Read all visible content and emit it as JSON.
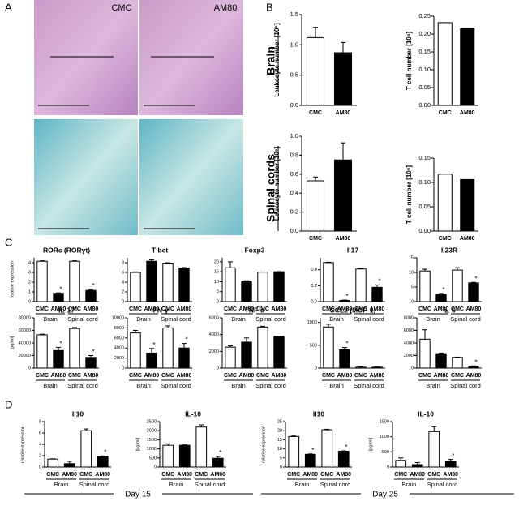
{
  "panel_labels": [
    "A",
    "B",
    "C",
    "D"
  ],
  "image_labels": [
    "CMC",
    "AM80"
  ],
  "row_labels": [
    "Brain",
    "Spinal cords"
  ],
  "day_labels": [
    "Day 15",
    "Day 25"
  ],
  "chart_data": [
    {
      "type": "bar",
      "ylabel": "Leukocyte number [10⁶]",
      "categories": [
        "CMC",
        "AM80"
      ],
      "values": [
        1.12,
        0.87
      ],
      "errors": [
        0.17,
        0.17
      ],
      "colors": [
        "#ffffff",
        "#000000"
      ],
      "ylim": [
        0,
        1.5
      ],
      "yticks": [
        {
          "value": 0,
          "label": "0.0"
        },
        0.5,
        {
          "value": 1,
          "label": "1.0"
        },
        1.5
      ]
    },
    {
      "type": "bar",
      "ylabel": "T cell number [10⁶]",
      "categories": [
        "CMC",
        "AM80"
      ],
      "values": [
        0.232,
        0.215
      ],
      "colors": [
        "#ffffff",
        "#000000"
      ],
      "ylim": [
        0,
        0.25
      ],
      "yticks": [
        {
          "value": 0,
          "label": "0.00"
        },
        0.05,
        {
          "value": 0.1,
          "label": "0.10"
        },
        0.15,
        {
          "value": 0.2,
          "label": "0.20"
        },
        0.25
      ]
    },
    {
      "type": "bar",
      "ylabel": "Leukocyte number [10⁶]",
      "categories": [
        "CMC",
        "AM80"
      ],
      "values": [
        0.53,
        0.75
      ],
      "errors": [
        0.04,
        0.18
      ],
      "colors": [
        "#ffffff",
        "#000000"
      ],
      "ylim": [
        0,
        1
      ],
      "yticks": [
        {
          "value": 0,
          "label": "0.0"
        },
        0.2,
        0.4,
        0.6,
        0.8,
        {
          "value": 1,
          "label": "1.0"
        }
      ]
    },
    {
      "type": "bar",
      "ylabel": "T cell number [10⁶]",
      "categories": [
        "CMC",
        "AM80"
      ],
      "values": [
        0.117,
        0.106
      ],
      "colors": [
        "#ffffff",
        "#000000"
      ],
      "ylim": [
        0,
        0.15
      ],
      "yticks": [
        {
          "value": 0,
          "label": "0.00"
        },
        0.05,
        {
          "value": 0.1,
          "label": "0.10"
        },
        0.15
      ]
    },
    {
      "type": "bar",
      "title": "RORc (RORγt)",
      "ylabel": "relative expression",
      "categories": [
        "CMC",
        "AM80",
        "CMC",
        "AM80"
      ],
      "groups": [
        "Brain",
        "Spinal cord"
      ],
      "values": [
        4.15,
        0.85,
        4.15,
        1.15
      ],
      "errors": [
        0.05,
        0.05,
        0.05,
        0.1
      ],
      "significance": [
        null,
        "*",
        null,
        "*"
      ],
      "colors": [
        "#ffffff",
        "#000000",
        "#ffffff",
        "#000000"
      ],
      "ylim": [
        0,
        4.5
      ],
      "yticks": [
        0,
        1,
        2,
        3,
        4
      ]
    },
    {
      "type": "bar",
      "title": "T-bet",
      "categories": [
        "CMC",
        "AM80",
        "CMC",
        "AM80"
      ],
      "groups": [
        "Brain",
        "Spinal cord"
      ],
      "values": [
        6.0,
        8.3,
        7.9,
        6.9
      ],
      "errors": [
        0.1,
        0.3,
        0.1,
        0.1
      ],
      "colors": [
        "#ffffff",
        "#000000",
        "#ffffff",
        "#000000"
      ],
      "ylim": [
        0,
        9
      ],
      "yticks": [
        0,
        2,
        4,
        6,
        8
      ]
    },
    {
      "type": "bar",
      "title": "Foxp3",
      "categories": [
        "CMC",
        "AM80",
        "CMC",
        "AM80"
      ],
      "groups": [
        "Brain",
        "Spinal cord"
      ],
      "values": [
        17,
        10,
        14.8,
        15
      ],
      "errors": [
        3,
        0.5,
        0.1,
        0.1
      ],
      "colors": [
        "#ffffff",
        "#000000",
        "#ffffff",
        "#000000"
      ],
      "ylim": [
        0,
        22
      ],
      "yticks": [
        0,
        5,
        10,
        15,
        20
      ]
    },
    {
      "type": "bar",
      "title": "Il17",
      "categories": [
        "CMC",
        "AM80",
        "CMC",
        "AM80"
      ],
      "groups": [
        "Brain",
        "Spinal cord"
      ],
      "values": [
        0.49,
        0.015,
        0.41,
        0.18
      ],
      "errors": [
        0.005,
        0.005,
        0.005,
        0.03
      ],
      "significance": [
        null,
        "*",
        null,
        "*"
      ],
      "colors": [
        "#ffffff",
        "#000000",
        "#ffffff",
        "#000000"
      ],
      "ylim": [
        0,
        0.55
      ],
      "yticks": [
        {
          "value": 0,
          "label": "0.0"
        },
        0.2,
        0.4
      ]
    },
    {
      "type": "bar",
      "title": "Il23R",
      "categories": [
        "CMC",
        "AM80",
        "CMC",
        "AM80"
      ],
      "groups": [
        "Brain",
        "Spinal cord"
      ],
      "values": [
        10.5,
        2.5,
        10.8,
        6.4
      ],
      "errors": [
        0.6,
        0.3,
        0.8,
        0.2
      ],
      "significance": [
        null,
        "*",
        null,
        "*"
      ],
      "colors": [
        "#ffffff",
        "#000000",
        "#ffffff",
        "#000000"
      ],
      "ylim": [
        0,
        15
      ],
      "yticks": [
        0,
        5,
        10,
        15
      ]
    },
    {
      "type": "bar",
      "title": "IL-17",
      "ylabel": "[pg/ml]",
      "categories": [
        "CMC",
        "AM80",
        "CMC",
        "AM80"
      ],
      "groups": [
        "Brain",
        "Spinal cord"
      ],
      "values": [
        53000,
        28000,
        63000,
        17000
      ],
      "errors": [
        1000,
        5000,
        1500,
        3000
      ],
      "significance": [
        null,
        "*",
        null,
        "*"
      ],
      "colors": [
        "#ffffff",
        "#000000",
        "#ffffff",
        "#000000"
      ],
      "ylim": [
        0,
        80000
      ],
      "yticks": [
        0,
        20000,
        40000,
        60000,
        80000
      ]
    },
    {
      "type": "bar",
      "title": "IFN-γ",
      "categories": [
        "CMC",
        "AM80",
        "CMC",
        "AM80"
      ],
      "groups": [
        "Brain",
        "Spinal cord"
      ],
      "values": [
        7000,
        3000,
        8000,
        4000
      ],
      "errors": [
        500,
        900,
        400,
        900
      ],
      "significance": [
        null,
        "*",
        null,
        "*"
      ],
      "colors": [
        "#ffffff",
        "#000000",
        "#ffffff",
        "#000000"
      ],
      "ylim": [
        0,
        10000
      ],
      "yticks": [
        0,
        2000,
        4000,
        6000,
        8000,
        10000
      ]
    },
    {
      "type": "bar",
      "title": "TNF-α",
      "categories": [
        "CMC",
        "AM80",
        "CMC",
        "AM80"
      ],
      "groups": [
        "Brain",
        "Spinal cord"
      ],
      "values": [
        2500,
        3100,
        4900,
        3800
      ],
      "errors": [
        150,
        500,
        100,
        20
      ],
      "colors": [
        "#ffffff",
        "#000000",
        "#ffffff",
        "#000000"
      ],
      "ylim": [
        0,
        6000
      ],
      "yticks": [
        0,
        2000,
        4000,
        6000
      ]
    },
    {
      "type": "bar",
      "title": "CCL2 (MCP-1)",
      "categories": [
        "CMC",
        "AM80",
        "CMC",
        "AM80"
      ],
      "groups": [
        "Brain",
        "Spinal cord"
      ],
      "values": [
        900,
        400,
        20,
        20
      ],
      "errors": [
        60,
        50,
        5,
        5
      ],
      "significance": [
        null,
        "*",
        null,
        null
      ],
      "colors": [
        "#ffffff",
        "#000000",
        "#ffffff",
        "#000000"
      ],
      "ylim": [
        0,
        1100
      ],
      "yticks": [
        0,
        500,
        1000
      ]
    },
    {
      "type": "bar",
      "title": "IL-6",
      "categories": [
        "CMC",
        "AM80",
        "CMC",
        "AM80"
      ],
      "groups": [
        "Brain",
        "Spinal cord"
      ],
      "values": [
        4600,
        2300,
        1700,
        300
      ],
      "errors": [
        1500,
        100,
        50,
        50
      ],
      "significance": [
        null,
        null,
        null,
        "*"
      ],
      "colors": [
        "#ffffff",
        "#000000",
        "#ffffff",
        "#000000"
      ],
      "ylim": [
        0,
        8000
      ],
      "yticks": [
        0,
        2000,
        4000,
        6000,
        8000
      ]
    },
    {
      "type": "bar",
      "title": "Il10",
      "ylabel": "relative expression",
      "categories": [
        "CMC",
        "AM80",
        "CMC",
        "AM80"
      ],
      "groups": [
        "Brain",
        "Spinal cord"
      ],
      "values": [
        1.4,
        0.6,
        6.4,
        1.8
      ],
      "errors": [
        0.05,
        0.4,
        0.3,
        0.15
      ],
      "significance": [
        null,
        null,
        null,
        "*"
      ],
      "colors": [
        "#ffffff",
        "#000000",
        "#ffffff",
        "#000000"
      ],
      "ylim": [
        0,
        8
      ],
      "yticks": [
        0,
        2,
        4,
        6,
        8
      ]
    },
    {
      "type": "bar",
      "title": "IL-10",
      "ylabel": "[pg/ml]",
      "categories": [
        "CMC",
        "AM80",
        "CMC",
        "AM80"
      ],
      "groups": [
        "Brain",
        "Spinal cord"
      ],
      "values": [
        1200,
        1200,
        2200,
        480
      ],
      "errors": [
        80,
        20,
        120,
        100
      ],
      "significance": [
        null,
        null,
        null,
        "*"
      ],
      "colors": [
        "#ffffff",
        "#000000",
        "#ffffff",
        "#000000"
      ],
      "ylim": [
        0,
        2500
      ],
      "yticks": [
        0,
        500,
        1000,
        1500,
        2000,
        2500
      ]
    },
    {
      "type": "bar",
      "title": "Il10",
      "ylabel": "relative expression",
      "categories": [
        "CMC",
        "AM80",
        "CMC",
        "AM80"
      ],
      "groups": [
        "Brain",
        "Spinal cord"
      ],
      "values": [
        16.8,
        7.0,
        20.5,
        8.7
      ],
      "errors": [
        0.5,
        0.2,
        0.3,
        0.2
      ],
      "significance": [
        null,
        "*",
        null,
        "*"
      ],
      "colors": [
        "#ffffff",
        "#000000",
        "#ffffff",
        "#000000"
      ],
      "ylim": [
        0,
        25
      ],
      "yticks": [
        0,
        5,
        10,
        15,
        20,
        25
      ]
    },
    {
      "type": "bar",
      "title": "IL-10",
      "ylabel": "[pg/ml]",
      "categories": [
        "CMC",
        "AM80",
        "CMC",
        "AM80"
      ],
      "groups": [
        "Brain",
        "Spinal cord"
      ],
      "values": [
        220,
        80,
        1170,
        190
      ],
      "errors": [
        80,
        70,
        160,
        60
      ],
      "significance": [
        null,
        null,
        null,
        "*"
      ],
      "colors": [
        "#ffffff",
        "#000000",
        "#ffffff",
        "#000000"
      ],
      "ylim": [
        0,
        1500
      ],
      "yticks": [
        0,
        500,
        1000,
        1500
      ]
    }
  ]
}
